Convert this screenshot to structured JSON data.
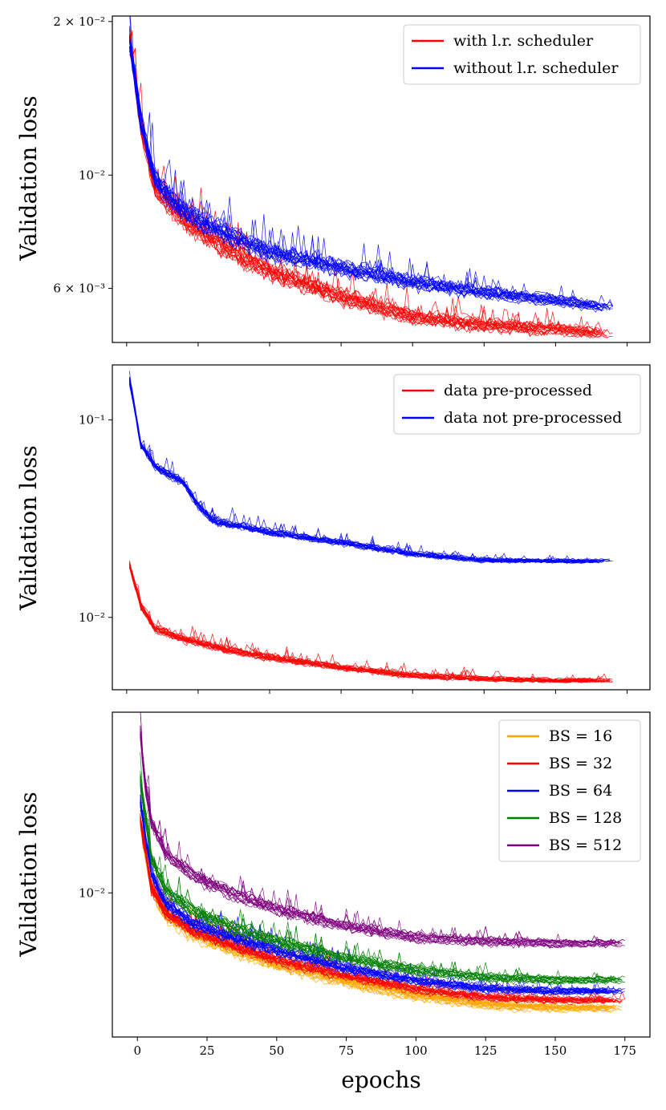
{
  "figure": {
    "xlabel": "epochs",
    "x_ticks": [
      0,
      25,
      50,
      75,
      100,
      125,
      150,
      175
    ],
    "x_tick_labels": [
      "0",
      "25",
      "50",
      "75",
      "100",
      "125",
      "150",
      "175"
    ]
  },
  "chart_data": [
    {
      "type": "line",
      "ylabel": "Validation loss",
      "yscale": "log",
      "xlim": [
        -5,
        183
      ],
      "ylim": [
        0.0047,
        0.0205
      ],
      "y_ticks": [
        0.02,
        0.01,
        0.006
      ],
      "y_tick_labels": [
        "2 × 10⁻²",
        "10⁻²",
        "6 × 10⁻³"
      ],
      "legend_position": "top-right",
      "runs_per_series": 20,
      "series": [
        {
          "name": "with l.r. scheduler",
          "color": "#ff0000",
          "x": [
            1,
            5,
            10,
            20,
            35,
            50,
            75,
            100,
            125,
            150,
            170
          ],
          "y": [
            0.0185,
            0.0125,
            0.0095,
            0.0082,
            0.0072,
            0.0065,
            0.0058,
            0.0053,
            0.0051,
            0.005,
            0.0049
          ]
        },
        {
          "name": "without l.r. scheduler",
          "color": "#0000ff",
          "x": [
            1,
            5,
            10,
            20,
            35,
            50,
            75,
            100,
            125,
            150,
            170
          ],
          "y": [
            0.0185,
            0.0128,
            0.0098,
            0.0085,
            0.0077,
            0.0071,
            0.0066,
            0.0062,
            0.0059,
            0.0057,
            0.0055
          ]
        }
      ]
    },
    {
      "type": "line",
      "ylabel": "Validation loss",
      "yscale": "log",
      "xlim": [
        -5,
        183
      ],
      "ylim": [
        0.0043,
        0.19
      ],
      "y_ticks": [
        0.1,
        0.01
      ],
      "y_tick_labels": [
        "10⁻¹",
        "10⁻²"
      ],
      "legend_position": "top-right",
      "runs_per_series": 20,
      "series": [
        {
          "name": "data pre-processed",
          "color": "#ff0000",
          "x": [
            1,
            5,
            10,
            20,
            35,
            50,
            75,
            100,
            125,
            150,
            170
          ],
          "y": [
            0.0185,
            0.0115,
            0.0088,
            0.0078,
            0.0069,
            0.0063,
            0.0056,
            0.0051,
            0.0049,
            0.0048,
            0.0048
          ]
        },
        {
          "name": "data not pre-processed",
          "color": "#0000ff",
          "x": [
            1,
            5,
            10,
            15,
            20,
            25,
            30,
            40,
            50,
            75,
            100,
            125,
            150,
            170
          ],
          "y": [
            0.16,
            0.075,
            0.058,
            0.053,
            0.048,
            0.037,
            0.031,
            0.029,
            0.027,
            0.024,
            0.021,
            0.0195,
            0.0193,
            0.0193
          ]
        }
      ]
    },
    {
      "type": "line",
      "ylabel": "Validation loss",
      "yscale": "log",
      "xlim": [
        -9,
        184
      ],
      "ylim": [
        0.0036,
        0.036
      ],
      "y_ticks": [
        0.01
      ],
      "y_tick_labels": [
        "10⁻²"
      ],
      "legend_position": "top-right",
      "runs_per_series": 20,
      "series": [
        {
          "name": "BS = 16",
          "color": "#ffa500",
          "x": [
            1,
            5,
            10,
            20,
            35,
            50,
            75,
            100,
            125,
            150,
            175
          ],
          "y": [
            0.0165,
            0.0102,
            0.0085,
            0.0074,
            0.0066,
            0.006,
            0.0053,
            0.0048,
            0.0045,
            0.0044,
            0.0044
          ]
        },
        {
          "name": "BS = 32",
          "color": "#ff0000",
          "x": [
            1,
            5,
            10,
            20,
            35,
            50,
            75,
            100,
            125,
            150,
            175
          ],
          "y": [
            0.017,
            0.0105,
            0.0088,
            0.0077,
            0.0069,
            0.0063,
            0.0056,
            0.0051,
            0.0048,
            0.0047,
            0.0047
          ]
        },
        {
          "name": "BS = 64",
          "color": "#0000ff",
          "x": [
            1,
            5,
            10,
            20,
            35,
            50,
            75,
            100,
            125,
            150,
            175
          ],
          "y": [
            0.019,
            0.0115,
            0.0094,
            0.0081,
            0.0073,
            0.0067,
            0.0059,
            0.0054,
            0.0051,
            0.005,
            0.005
          ]
        },
        {
          "name": "BS = 128",
          "color": "#008000",
          "x": [
            1,
            5,
            10,
            20,
            35,
            50,
            75,
            100,
            125,
            150,
            175
          ],
          "y": [
            0.0225,
            0.0128,
            0.0103,
            0.0088,
            0.0078,
            0.0071,
            0.0063,
            0.0058,
            0.0055,
            0.0054,
            0.0054
          ]
        },
        {
          "name": "BS = 512",
          "color": "#800080",
          "x": [
            1,
            3,
            5,
            10,
            20,
            35,
            50,
            75,
            100,
            125,
            150,
            175
          ],
          "y": [
            0.031,
            0.021,
            0.0165,
            0.0133,
            0.0113,
            0.0099,
            0.0089,
            0.0079,
            0.0073,
            0.0071,
            0.007,
            0.007
          ]
        }
      ]
    }
  ]
}
